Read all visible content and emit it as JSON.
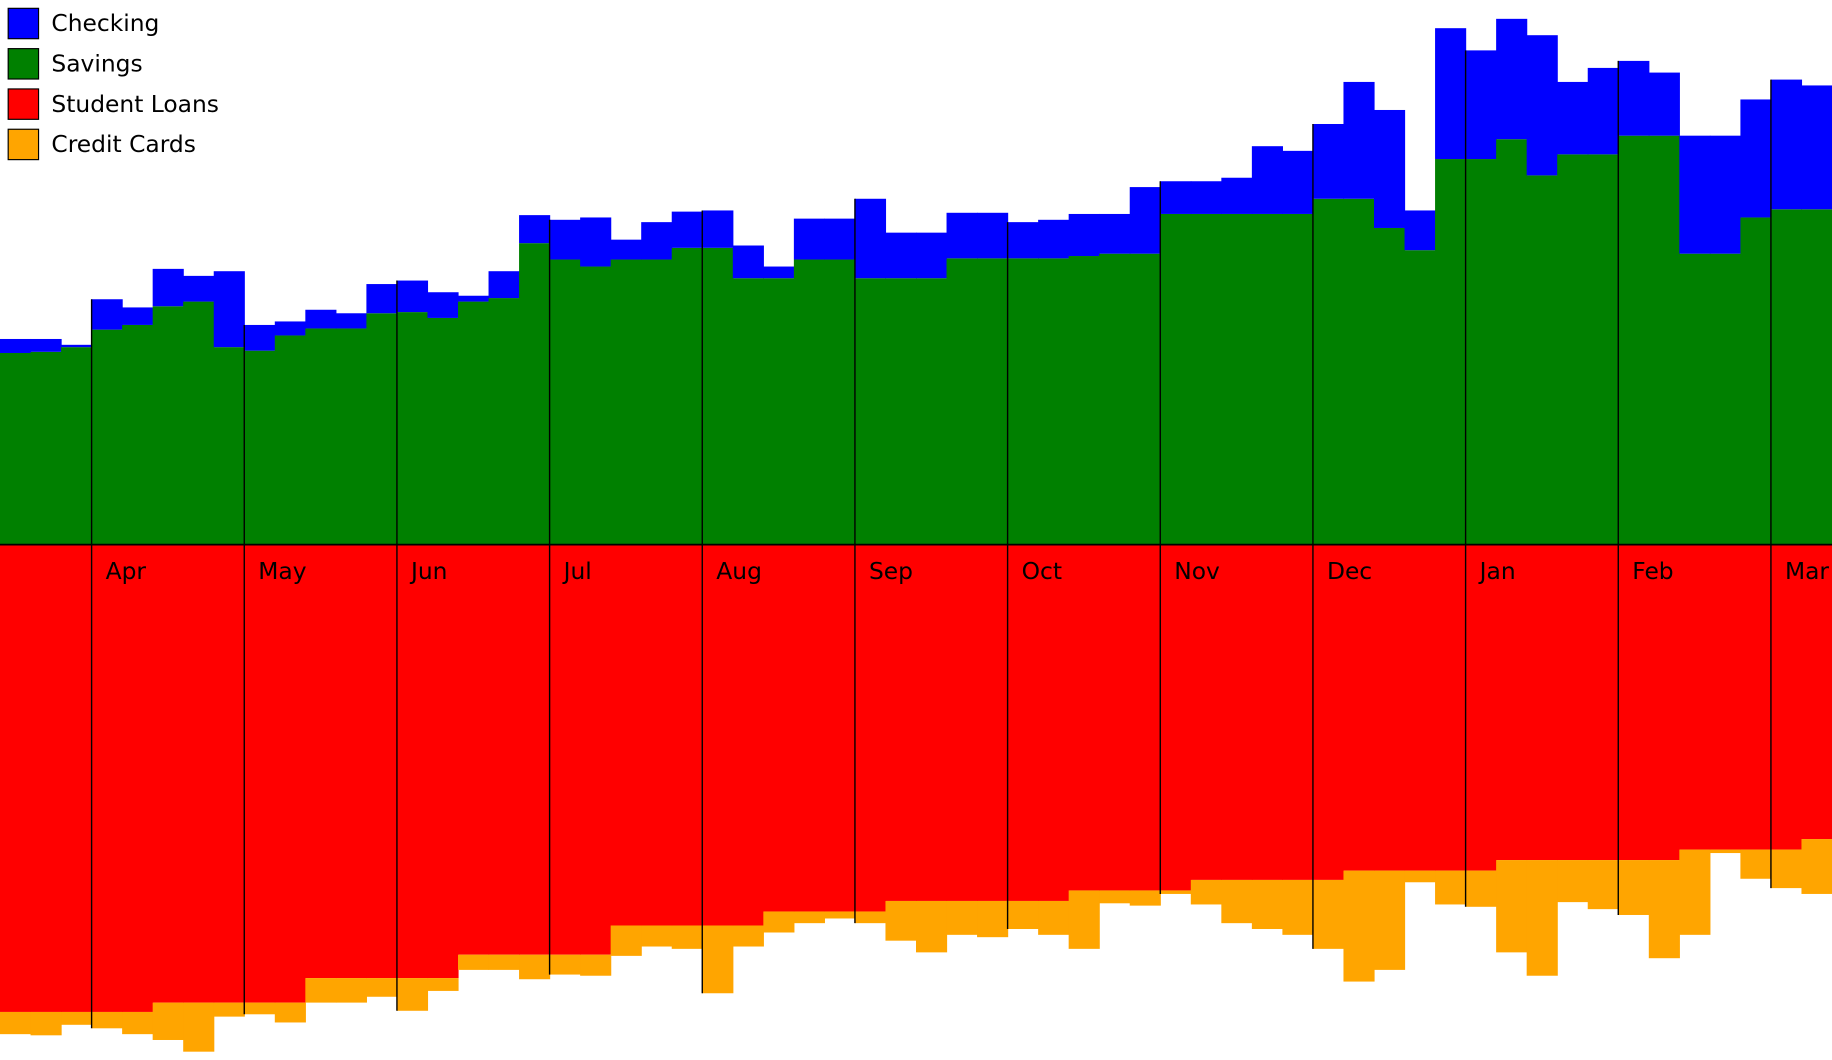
{
  "chart_data": {
    "type": "area",
    "categories": [
      null,
      null,
      null,
      "Apr",
      null,
      null,
      null,
      null,
      "May",
      null,
      null,
      null,
      null,
      "Jun",
      null,
      null,
      null,
      null,
      "Jul",
      null,
      null,
      null,
      null,
      "Aug",
      null,
      null,
      null,
      null,
      "Sep",
      null,
      null,
      null,
      null,
      "Oct",
      null,
      null,
      null,
      null,
      "Nov",
      null,
      null,
      null,
      null,
      "Dec",
      null,
      null,
      null,
      null,
      "Jan",
      null,
      null,
      null,
      null,
      "Feb",
      null,
      null,
      null,
      null,
      "Mar",
      null
    ],
    "series": [
      {
        "name": "Checking",
        "color": "#0000ff",
        "values": [
          12,
          11,
          2,
          26,
          15,
          32,
          22,
          65,
          22,
          12,
          16,
          13,
          25,
          27,
          22,
          5,
          23,
          24,
          34,
          42,
          17,
          32,
          31,
          32,
          28,
          10,
          35,
          35,
          68,
          39,
          39,
          39,
          39,
          31,
          33,
          36,
          34,
          57,
          28,
          28,
          31,
          58,
          54,
          64,
          100,
          101,
          34,
          112,
          93,
          103,
          120,
          62,
          74,
          64,
          54,
          101,
          101,
          101,
          111,
          106
        ]
      },
      {
        "name": "Savings",
        "color": "#008000",
        "values": [
          164,
          165,
          169,
          184,
          188,
          204,
          208,
          169,
          166,
          179,
          185,
          185,
          198,
          199,
          194,
          208,
          211,
          258,
          244,
          238,
          244,
          244,
          254,
          254,
          228,
          228,
          244,
          244,
          228,
          228,
          228,
          245,
          245,
          245,
          245,
          247,
          249,
          249,
          283,
          283,
          283,
          283,
          283,
          296,
          296,
          271,
          252,
          330,
          330,
          347,
          316,
          334,
          334,
          350,
          350,
          249,
          249,
          280,
          287,
          287
        ]
      },
      {
        "name": "Student Loans",
        "color": "#ff0000",
        "values": [
          -400,
          -400,
          -400,
          -400,
          -400,
          -392,
          -392,
          -392,
          -392,
          -392,
          -371,
          -371,
          -371,
          -371,
          -371,
          -351,
          -351,
          -351,
          -351,
          -351,
          -326,
          -326,
          -326,
          -326,
          -326,
          -314,
          -314,
          -314,
          -314,
          -305,
          -305,
          -305,
          -305,
          -305,
          -305,
          -296,
          -296,
          -296,
          -296,
          -287,
          -287,
          -287,
          -287,
          -287,
          -279,
          -279,
          -279,
          -279,
          -279,
          -270,
          -270,
          -270,
          -270,
          -270,
          -270,
          -261,
          -261,
          -261,
          -261,
          -252
        ]
      },
      {
        "name": "Credit Cards",
        "color": "#ffa500",
        "values": [
          -19,
          -20,
          -11,
          -14,
          -19,
          -32,
          -42,
          -12,
          -10,
          -17,
          -21,
          -21,
          -16,
          -28,
          -11,
          -13,
          -13,
          -21,
          -17,
          -18,
          -26,
          -18,
          -20,
          -58,
          -18,
          -18,
          -10,
          -6,
          -10,
          -34,
          -44,
          -29,
          -31,
          -24,
          -29,
          -50,
          -11,
          -13,
          -3,
          -21,
          -37,
          -42,
          -47,
          -59,
          -95,
          -85,
          -10,
          -29,
          -31,
          -79,
          -99,
          -36,
          -42,
          -47,
          -84,
          -73,
          -3,
          -25,
          -33,
          -47
        ]
      }
    ],
    "ylim": [
      -441,
      466
    ]
  }
}
